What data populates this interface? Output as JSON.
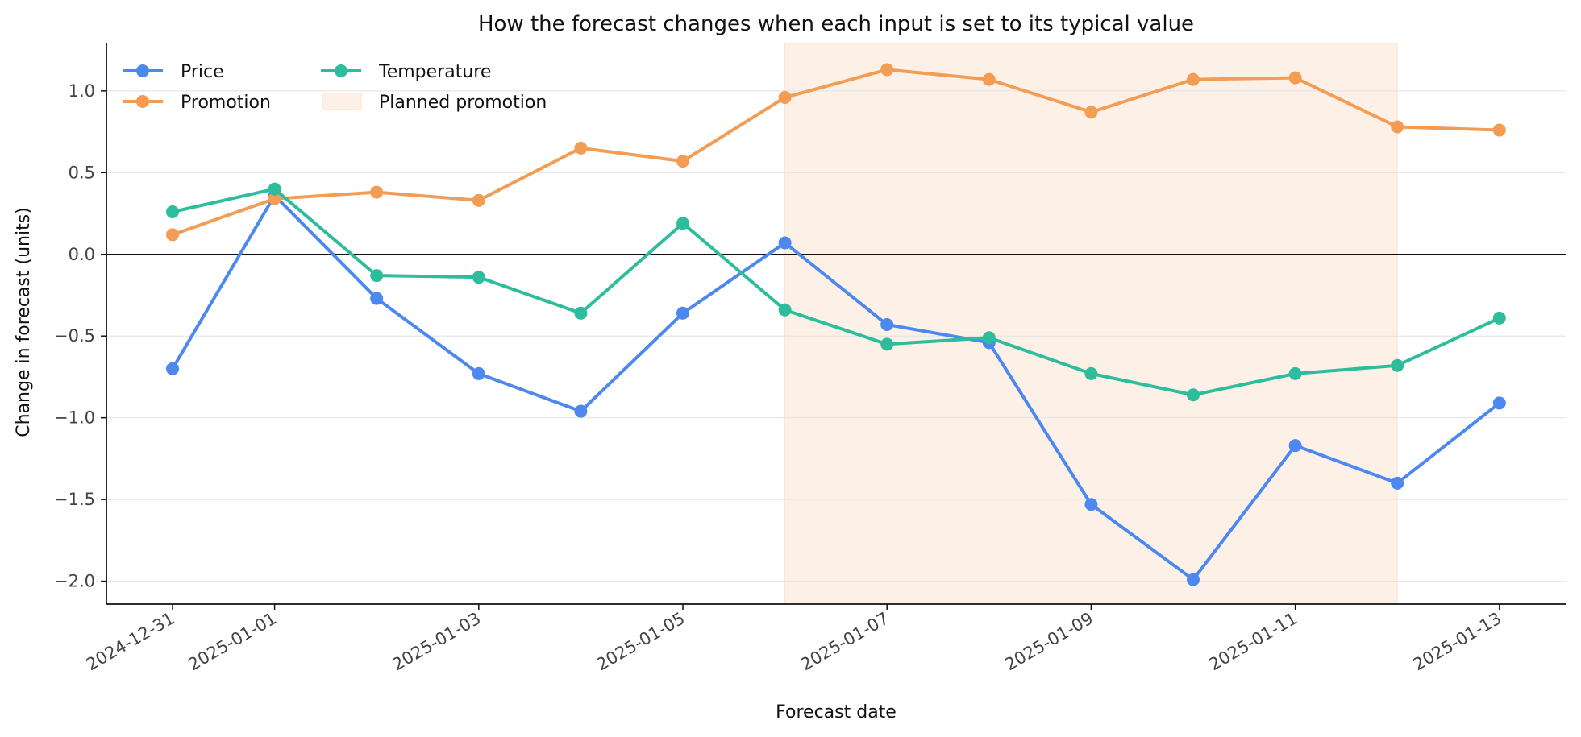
{
  "chart_data": {
    "type": "line",
    "title": "How the forecast changes when each input is set to its typical value",
    "xlabel": "Forecast date",
    "ylabel": "Change in forecast (units)",
    "x": [
      "2024-12-31",
      "2025-01-01",
      "2025-01-02",
      "2025-01-03",
      "2025-01-04",
      "2025-01-05",
      "2025-01-06",
      "2025-01-07",
      "2025-01-08",
      "2025-01-09",
      "2025-01-10",
      "2025-01-11",
      "2025-01-12",
      "2025-01-13"
    ],
    "x_ticks": [
      "2024-12-31",
      "2025-01-01",
      "2025-01-03",
      "2025-01-05",
      "2025-01-07",
      "2025-01-09",
      "2025-01-11",
      "2025-01-13"
    ],
    "ylim": [
      -2.14,
      1.29
    ],
    "y_ticks": [
      -2.0,
      -1.5,
      -1.0,
      -0.5,
      0.0,
      0.5,
      1.0
    ],
    "y_tick_labels": [
      "−2.0",
      "−1.5",
      "−1.0",
      "−0.5",
      "0.0",
      "0.5",
      "1.0"
    ],
    "grid": "horizontal",
    "reference_line_y": 0,
    "legend_placement": "top-left",
    "series": [
      {
        "name": "Price",
        "color": "#4c88ef",
        "values": [
          -0.7,
          0.36,
          -0.27,
          -0.73,
          -0.96,
          -0.36,
          0.07,
          -0.43,
          -0.54,
          -1.53,
          -1.99,
          -1.17,
          -1.4,
          -0.91
        ]
      },
      {
        "name": "Promotion",
        "color": "#f39c54",
        "values": [
          0.12,
          0.34,
          0.38,
          0.33,
          0.65,
          0.57,
          0.96,
          1.13,
          1.07,
          0.87,
          1.07,
          1.08,
          0.78,
          0.76
        ]
      },
      {
        "name": "Temperature",
        "color": "#2dbd9c",
        "values": [
          0.26,
          0.4,
          -0.13,
          -0.14,
          -0.36,
          0.19,
          -0.34,
          -0.55,
          -0.51,
          -0.73,
          -0.86,
          -0.73,
          -0.68,
          -0.39
        ]
      }
    ],
    "shaded_region": {
      "name": "Planned promotion",
      "x_start": "2025-01-06",
      "x_end": "2025-01-12",
      "color": "#fdf0e6"
    }
  }
}
